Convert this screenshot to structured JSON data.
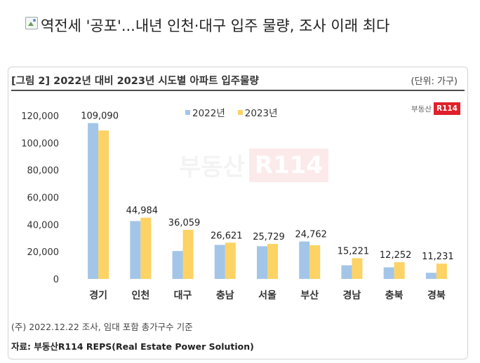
{
  "headline": "역전세 '공포'...내년 인천·대구 입주 물량, 조사 이래 최다",
  "unit": "(단위: 가구)",
  "brand": {
    "text": "부동산",
    "badge": "R114"
  },
  "note": "(주) 2022.12.22 조사, 임대 포함 총가구수 기준",
  "source": "자료: 부동산R114 REPS(Real Estate Power Solution)",
  "colors": {
    "y2022": "#a3c5e8",
    "y2023": "#fcd364"
  },
  "chart_data": {
    "type": "bar",
    "title": "[그림 2] 2022년 대비 2023년 시도별 아파트 입주물량",
    "categories": [
      "경기",
      "인천",
      "대구",
      "충남",
      "서울",
      "부산",
      "경남",
      "충북",
      "경북"
    ],
    "series": [
      {
        "name": "2022년",
        "values": [
          114500,
          42500,
          20500,
          25000,
          24000,
          27500,
          10000,
          8500,
          4500
        ]
      },
      {
        "name": "2023년",
        "values": [
          109090,
          44984,
          36059,
          26621,
          25729,
          24762,
          15221,
          12252,
          11231
        ]
      }
    ],
    "data_labels": [
      "109,090",
      "44,984",
      "36,059",
      "26,621",
      "25,729",
      "24,762",
      "15,221",
      "12,252",
      "11,231"
    ],
    "yticks": [
      "0",
      "20,000",
      "40,000",
      "60,000",
      "80,000",
      "100,000",
      "120,000"
    ],
    "ylim": [
      0,
      120000
    ],
    "legend": "top-center",
    "grid": false
  }
}
